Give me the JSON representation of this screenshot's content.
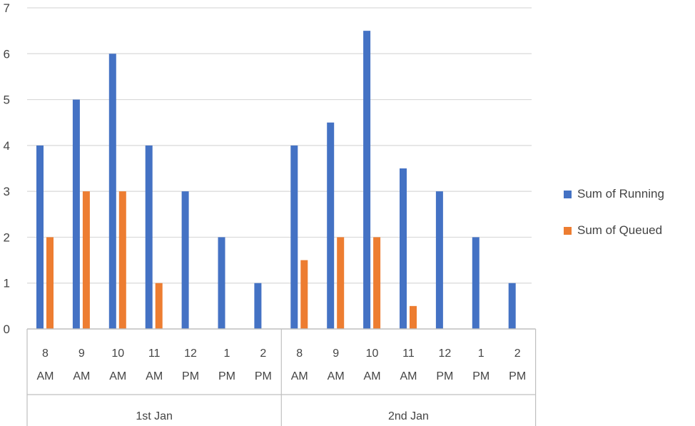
{
  "chart_data": {
    "type": "bar",
    "groups": [
      {
        "label": "1st Jan",
        "categories": [
          [
            "8",
            "AM"
          ],
          [
            "9",
            "AM"
          ],
          [
            "10",
            "AM"
          ],
          [
            "11",
            "AM"
          ],
          [
            "12",
            "PM"
          ],
          [
            "1",
            "PM"
          ],
          [
            "2",
            "PM"
          ]
        ]
      },
      {
        "label": "2nd Jan",
        "categories": [
          [
            "8",
            "AM"
          ],
          [
            "9",
            "AM"
          ],
          [
            "10",
            "AM"
          ],
          [
            "11",
            "AM"
          ],
          [
            "12",
            "PM"
          ],
          [
            "1",
            "PM"
          ],
          [
            "2",
            "PM"
          ]
        ]
      }
    ],
    "series": [
      {
        "name": "Sum of Running",
        "color": "#4472C4",
        "values": [
          4,
          5,
          6,
          4,
          3,
          2,
          1,
          4,
          4.5,
          6.5,
          3.5,
          3,
          2,
          1
        ]
      },
      {
        "name": "Sum of Queued",
        "color": "#ED7D31",
        "values": [
          2,
          3,
          3,
          1,
          0,
          0,
          0,
          1.5,
          2,
          2,
          0.5,
          0,
          0,
          0
        ]
      }
    ],
    "ylim": [
      0,
      7
    ],
    "yticks": [
      0,
      1,
      2,
      3,
      4,
      5,
      6,
      7
    ],
    "grid": true,
    "legend": "right"
  }
}
